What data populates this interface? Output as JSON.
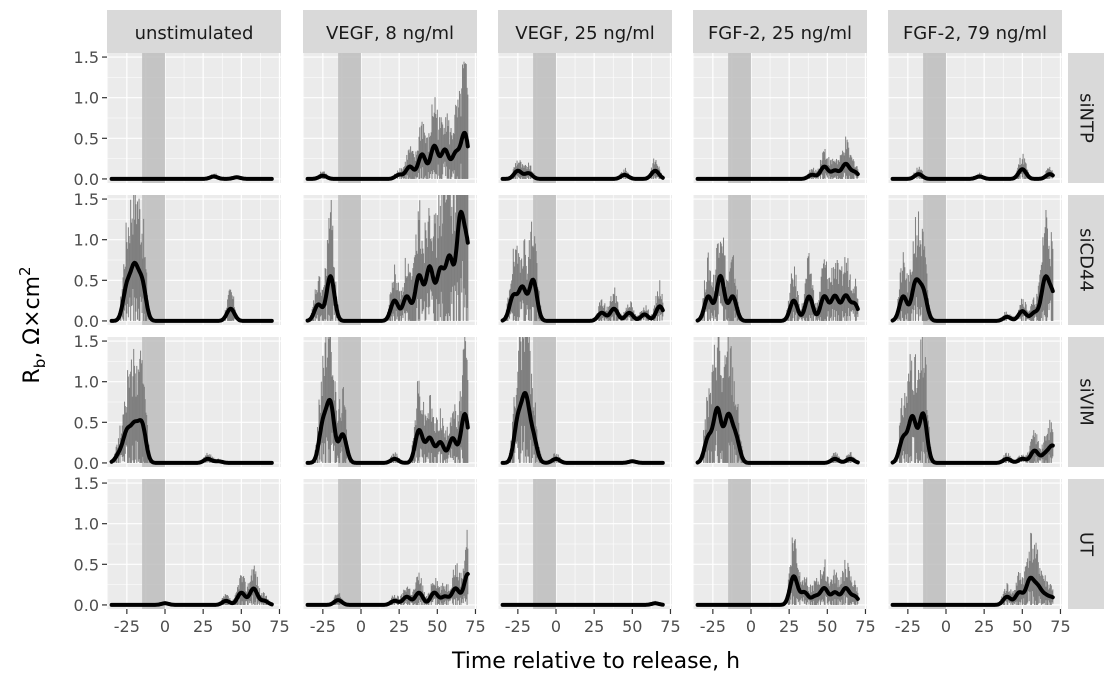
{
  "chart_data": {
    "type": "line",
    "facet_columns": [
      "unstimulated",
      "VEGF, 8 ng/ml",
      "VEGF, 25 ng/ml",
      "FGF-2, 25 ng/ml",
      "FGF-2, 79 ng/ml"
    ],
    "facet_rows": [
      "siNTP",
      "siCD44",
      "siVIM",
      "UT"
    ],
    "xlabel": "Time relative to release, h",
    "ylabel": "R_b, Ω × cm²",
    "ylabel_parts": {
      "main": "R",
      "sub": "b",
      "mid": ", Ω×cm",
      "sup": "2"
    },
    "xlim": [
      -38,
      76
    ],
    "ylim": [
      -0.05,
      1.55
    ],
    "x_ticks": [
      -25,
      0,
      25,
      50,
      75
    ],
    "x_tick_labels": [
      "-25",
      "0",
      "25",
      "50",
      "75"
    ],
    "y_ticks": [
      0.0,
      0.5,
      1.0,
      1.5
    ],
    "y_tick_labels": [
      "0.0",
      "0.5",
      "1.0",
      "1.5"
    ],
    "shaded_interval": [
      -15,
      0
    ],
    "grid": true,
    "colors": {
      "panel_bg": "#ebebeb",
      "grid": "#ffffff",
      "strip_bg": "#d9d9d9",
      "shade": "#bdbdbd",
      "line": "#000000",
      "errorbar": "#7f7f7f"
    },
    "x_range": [
      -35,
      70
    ],
    "peak_width_h": 5,
    "panels": [
      [
        {
          "col": 0,
          "peaks": [
            [
              32,
              0.03
            ],
            [
              47,
              0.02
            ]
          ]
        },
        {
          "col": 1,
          "peaks": [
            [
              -25,
              0.04
            ],
            [
              25,
              0.05
            ],
            [
              32,
              0.15
            ],
            [
              40,
              0.3
            ],
            [
              48,
              0.4
            ],
            [
              55,
              0.35
            ],
            [
              62,
              0.3
            ],
            [
              68,
              0.55
            ]
          ]
        },
        {
          "col": 2,
          "peaks": [
            [
              -25,
              0.1
            ],
            [
              -18,
              0.07
            ],
            [
              45,
              0.05
            ],
            [
              65,
              0.1
            ]
          ]
        },
        {
          "col": 3,
          "peaks": [
            [
              40,
              0.05
            ],
            [
              48,
              0.15
            ],
            [
              55,
              0.1
            ],
            [
              62,
              0.18
            ],
            [
              68,
              0.08
            ]
          ]
        },
        {
          "col": 4,
          "peaks": [
            [
              -18,
              0.06
            ],
            [
              22,
              0.03
            ],
            [
              50,
              0.12
            ],
            [
              68,
              0.06
            ]
          ]
        }
      ],
      [
        {
          "col": 0,
          "peaks": [
            [
              -25,
              0.4
            ],
            [
              -20,
              0.6
            ],
            [
              -15,
              0.45
            ],
            [
              43,
              0.15
            ]
          ]
        },
        {
          "col": 1,
          "peaks": [
            [
              -28,
              0.2
            ],
            [
              -20,
              0.55
            ],
            [
              22,
              0.25
            ],
            [
              30,
              0.3
            ],
            [
              38,
              0.55
            ],
            [
              45,
              0.65
            ],
            [
              52,
              0.6
            ],
            [
              58,
              0.75
            ],
            [
              65,
              1.2
            ],
            [
              70,
              0.8
            ]
          ]
        },
        {
          "col": 2,
          "peaks": [
            [
              -28,
              0.3
            ],
            [
              -22,
              0.4
            ],
            [
              -15,
              0.5
            ],
            [
              30,
              0.1
            ],
            [
              38,
              0.15
            ],
            [
              48,
              0.1
            ],
            [
              58,
              0.08
            ],
            [
              68,
              0.18
            ]
          ]
        },
        {
          "col": 3,
          "peaks": [
            [
              -28,
              0.3
            ],
            [
              -20,
              0.55
            ],
            [
              -12,
              0.3
            ],
            [
              28,
              0.25
            ],
            [
              38,
              0.3
            ],
            [
              48,
              0.3
            ],
            [
              55,
              0.3
            ],
            [
              62,
              0.3
            ],
            [
              68,
              0.2
            ]
          ]
        },
        {
          "col": 4,
          "peaks": [
            [
              -28,
              0.3
            ],
            [
              -20,
              0.45
            ],
            [
              -15,
              0.35
            ],
            [
              40,
              0.05
            ],
            [
              50,
              0.12
            ],
            [
              58,
              0.1
            ],
            [
              65,
              0.5
            ],
            [
              70,
              0.3
            ]
          ]
        }
      ],
      [
        {
          "col": 0,
          "peaks": [
            [
              -30,
              0.1
            ],
            [
              -25,
              0.35
            ],
            [
              -20,
              0.4
            ],
            [
              -15,
              0.45
            ],
            [
              28,
              0.05
            ],
            [
              35,
              0.02
            ]
          ]
        },
        {
          "col": 1,
          "peaks": [
            [
              -25,
              0.45
            ],
            [
              -20,
              0.7
            ],
            [
              -12,
              0.35
            ],
            [
              22,
              0.05
            ],
            [
              38,
              0.4
            ],
            [
              45,
              0.3
            ],
            [
              52,
              0.25
            ],
            [
              60,
              0.3
            ],
            [
              68,
              0.6
            ]
          ]
        },
        {
          "col": 2,
          "peaks": [
            [
              -25,
              0.5
            ],
            [
              -20,
              0.75
            ],
            [
              -15,
              0.3
            ],
            [
              0,
              0.05
            ],
            [
              50,
              0.02
            ]
          ]
        },
        {
          "col": 3,
          "peaks": [
            [
              -28,
              0.3
            ],
            [
              -22,
              0.65
            ],
            [
              -15,
              0.55
            ],
            [
              -10,
              0.3
            ],
            [
              55,
              0.05
            ],
            [
              65,
              0.05
            ]
          ]
        },
        {
          "col": 4,
          "peaks": [
            [
              -28,
              0.3
            ],
            [
              -22,
              0.55
            ],
            [
              -15,
              0.6
            ],
            [
              40,
              0.05
            ],
            [
              50,
              0.05
            ],
            [
              58,
              0.15
            ],
            [
              65,
              0.1
            ],
            [
              70,
              0.2
            ]
          ]
        }
      ],
      [
        {
          "col": 0,
          "peaks": [
            [
              0,
              0.02
            ],
            [
              40,
              0.05
            ],
            [
              50,
              0.15
            ],
            [
              58,
              0.2
            ],
            [
              65,
              0.05
            ]
          ]
        },
        {
          "col": 1,
          "peaks": [
            [
              -15,
              0.06
            ],
            [
              22,
              0.05
            ],
            [
              30,
              0.1
            ],
            [
              38,
              0.15
            ],
            [
              48,
              0.15
            ],
            [
              55,
              0.1
            ],
            [
              62,
              0.2
            ],
            [
              70,
              0.38
            ]
          ]
        },
        {
          "col": 2,
          "peaks": [
            [
              65,
              0.02
            ]
          ]
        },
        {
          "col": 3,
          "peaks": [
            [
              28,
              0.35
            ],
            [
              35,
              0.15
            ],
            [
              42,
              0.1
            ],
            [
              48,
              0.2
            ],
            [
              55,
              0.15
            ],
            [
              62,
              0.2
            ],
            [
              68,
              0.1
            ]
          ]
        },
        {
          "col": 4,
          "peaks": [
            [
              40,
              0.1
            ],
            [
              48,
              0.15
            ],
            [
              55,
              0.3
            ],
            [
              60,
              0.2
            ],
            [
              65,
              0.1
            ],
            [
              70,
              0.08
            ]
          ]
        }
      ]
    ]
  }
}
